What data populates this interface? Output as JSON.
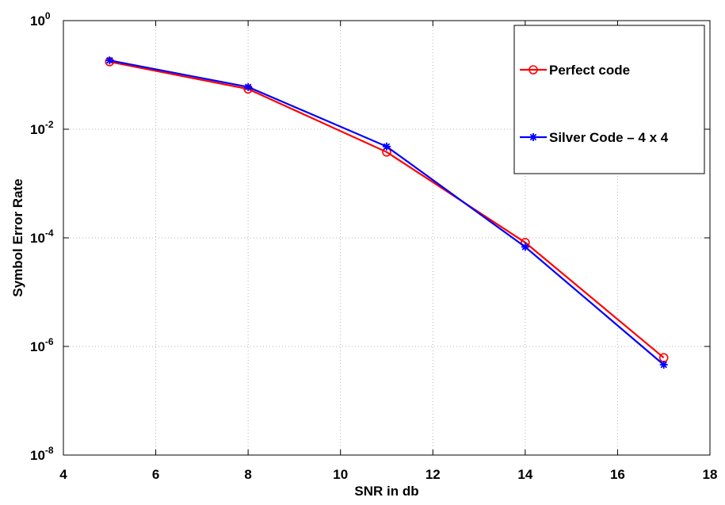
{
  "chart_data": {
    "type": "line",
    "title": "",
    "xlabel": "SNR in db",
    "ylabel": "Symbol Error Rate",
    "xlim": [
      4,
      18
    ],
    "ylim": [
      1e-08,
      1
    ],
    "yscale": "log",
    "grid": true,
    "legend_position": "top-right",
    "x_ticks": [
      "4",
      "6",
      "8",
      "10",
      "12",
      "14",
      "16",
      "18"
    ],
    "y_ticks": [
      {
        "base": "10",
        "exp": "0"
      },
      {
        "base": "10",
        "exp": "-2"
      },
      {
        "base": "10",
        "exp": "-4"
      },
      {
        "base": "10",
        "exp": "-6"
      },
      {
        "base": "10",
        "exp": "-8"
      }
    ],
    "x": [
      5,
      8,
      11,
      14,
      17
    ],
    "series": [
      {
        "name": "Perfect code",
        "color": "#ff0000",
        "marker": "circle",
        "values": [
          0.175,
          0.055,
          0.0038,
          8.2e-05,
          6.2e-07
        ]
      },
      {
        "name": "Silver Code – 4 x 4",
        "color": "#0000ff",
        "marker": "star",
        "values": [
          0.185,
          0.06,
          0.0048,
          6.8e-05,
          4.6e-07
        ]
      }
    ]
  }
}
